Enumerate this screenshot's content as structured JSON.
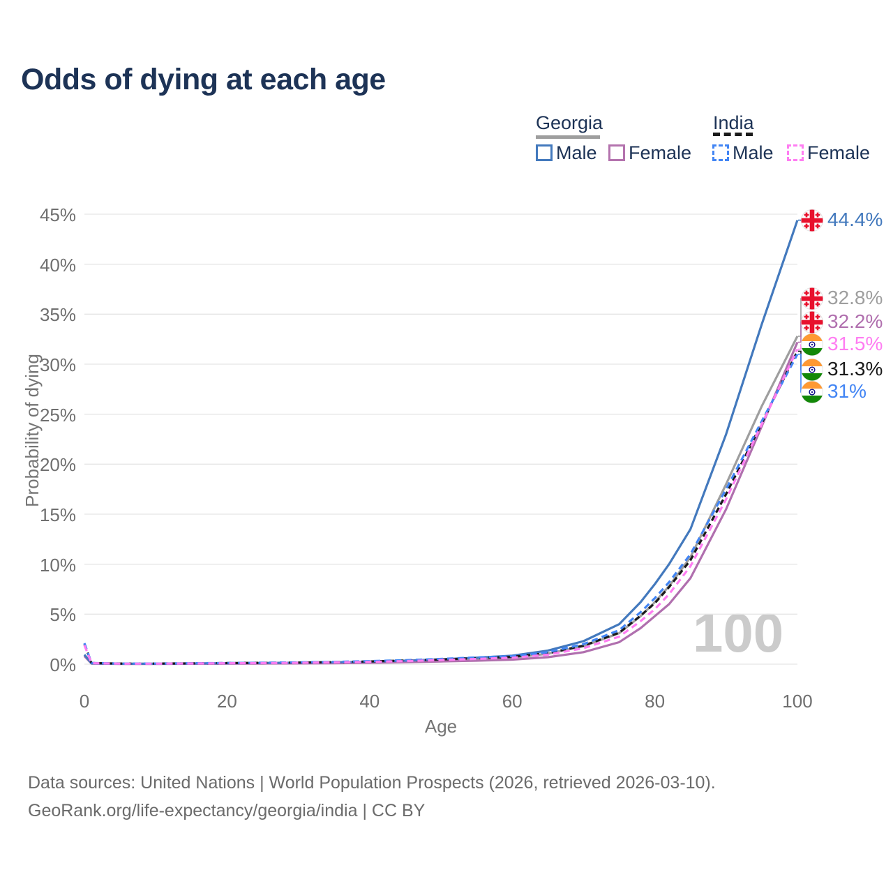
{
  "title": "Odds of dying at each age",
  "legend": {
    "groups": [
      {
        "id": "georgia",
        "label": "Georgia",
        "underline_color": "#9e9e9e",
        "underline_style": "solid",
        "items": [
          {
            "label": "Male",
            "color": "#4379bd",
            "dashed": false
          },
          {
            "label": "Female",
            "color": "#b473ae",
            "dashed": false
          }
        ]
      },
      {
        "id": "india",
        "label": "India",
        "underline_color": "#1a1a1a",
        "underline_style": "dashed",
        "items": [
          {
            "label": "Male",
            "color": "#4285f4",
            "dashed": true
          },
          {
            "label": "Female",
            "color": "#ff7df2",
            "dashed": true
          }
        ]
      }
    ]
  },
  "chart_data": {
    "type": "line",
    "title": "Odds of dying at each age",
    "xlabel": "Age",
    "ylabel": "Probability of dying",
    "xlim": [
      0,
      100
    ],
    "ylim": [
      0,
      45
    ],
    "x_ticks": [
      0,
      20,
      40,
      60,
      80,
      100
    ],
    "y_ticks": [
      0,
      5,
      10,
      15,
      20,
      25,
      30,
      35,
      40,
      45
    ],
    "y_tick_format": "percent",
    "grid": "horizontal",
    "legend_position": "top-right",
    "watermark": "100",
    "x": [
      0,
      1,
      5,
      10,
      15,
      20,
      25,
      30,
      35,
      40,
      45,
      50,
      55,
      60,
      65,
      70,
      75,
      78,
      80,
      82,
      85,
      90,
      95,
      100
    ],
    "series": [
      {
        "name": "Georgia Total",
        "country": "Georgia",
        "flag": "georgia",
        "color": "#9e9e9e",
        "dash": null,
        "end_label": "32.8%",
        "values": [
          0.88,
          0.07,
          0.04,
          0.04,
          0.06,
          0.08,
          0.1,
          0.12,
          0.15,
          0.2,
          0.28,
          0.38,
          0.5,
          0.65,
          1.05,
          1.8,
          3.1,
          4.8,
          6.2,
          7.8,
          10.7,
          18.0,
          25.8,
          32.8
        ]
      },
      {
        "name": "Georgia Female",
        "country": "Georgia",
        "flag": "georgia",
        "color": "#b06fae",
        "dash": null,
        "end_label": "32.2%",
        "values": [
          0.8,
          0.06,
          0.03,
          0.03,
          0.04,
          0.05,
          0.06,
          0.08,
          0.1,
          0.14,
          0.2,
          0.27,
          0.35,
          0.45,
          0.7,
          1.2,
          2.2,
          3.6,
          4.8,
          6.0,
          8.6,
          15.5,
          23.8,
          32.2
        ]
      },
      {
        "name": "Georgia Male",
        "country": "Georgia",
        "flag": "georgia",
        "color": "#4379bd",
        "dash": null,
        "end_label": "44.4%",
        "values": [
          0.95,
          0.08,
          0.04,
          0.04,
          0.07,
          0.1,
          0.12,
          0.15,
          0.19,
          0.25,
          0.35,
          0.48,
          0.65,
          0.85,
          1.35,
          2.3,
          4.0,
          6.2,
          8.0,
          10.0,
          13.5,
          23.0,
          34.0,
          44.4
        ]
      },
      {
        "name": "India Total",
        "country": "India",
        "flag": "india",
        "color": "#1a1a1a",
        "dash": "8 5",
        "end_label": "31.3%",
        "values": [
          2.0,
          0.11,
          0.06,
          0.06,
          0.08,
          0.11,
          0.13,
          0.16,
          0.21,
          0.27,
          0.36,
          0.47,
          0.6,
          0.73,
          1.1,
          1.85,
          3.15,
          4.85,
          6.1,
          7.7,
          10.4,
          17.0,
          24.1,
          31.3
        ]
      },
      {
        "name": "India Male",
        "country": "India",
        "flag": "india",
        "color": "#4285f4",
        "dash": "9 6",
        "end_label": "31%",
        "values": [
          2.1,
          0.12,
          0.06,
          0.06,
          0.09,
          0.12,
          0.15,
          0.18,
          0.23,
          0.3,
          0.4,
          0.52,
          0.67,
          0.8,
          1.2,
          2.0,
          3.4,
          5.2,
          6.6,
          8.2,
          11.0,
          17.5,
          24.3,
          31.0
        ]
      },
      {
        "name": "India Female",
        "country": "India",
        "flag": "india",
        "color": "#ff7df2",
        "dash": "9 6",
        "end_label": "31.5%",
        "values": [
          1.9,
          0.1,
          0.05,
          0.05,
          0.07,
          0.09,
          0.11,
          0.14,
          0.18,
          0.23,
          0.31,
          0.41,
          0.52,
          0.64,
          0.95,
          1.6,
          2.75,
          4.3,
          5.5,
          7.0,
          9.8,
          16.5,
          24.0,
          31.5
        ]
      }
    ]
  },
  "footer": {
    "line1": "Data sources: United Nations | World Population Prospects (2026, retrieved 2026-03-10).",
    "line2": "GeoRank.org/life-expectancy/georgia/india | CC BY"
  }
}
